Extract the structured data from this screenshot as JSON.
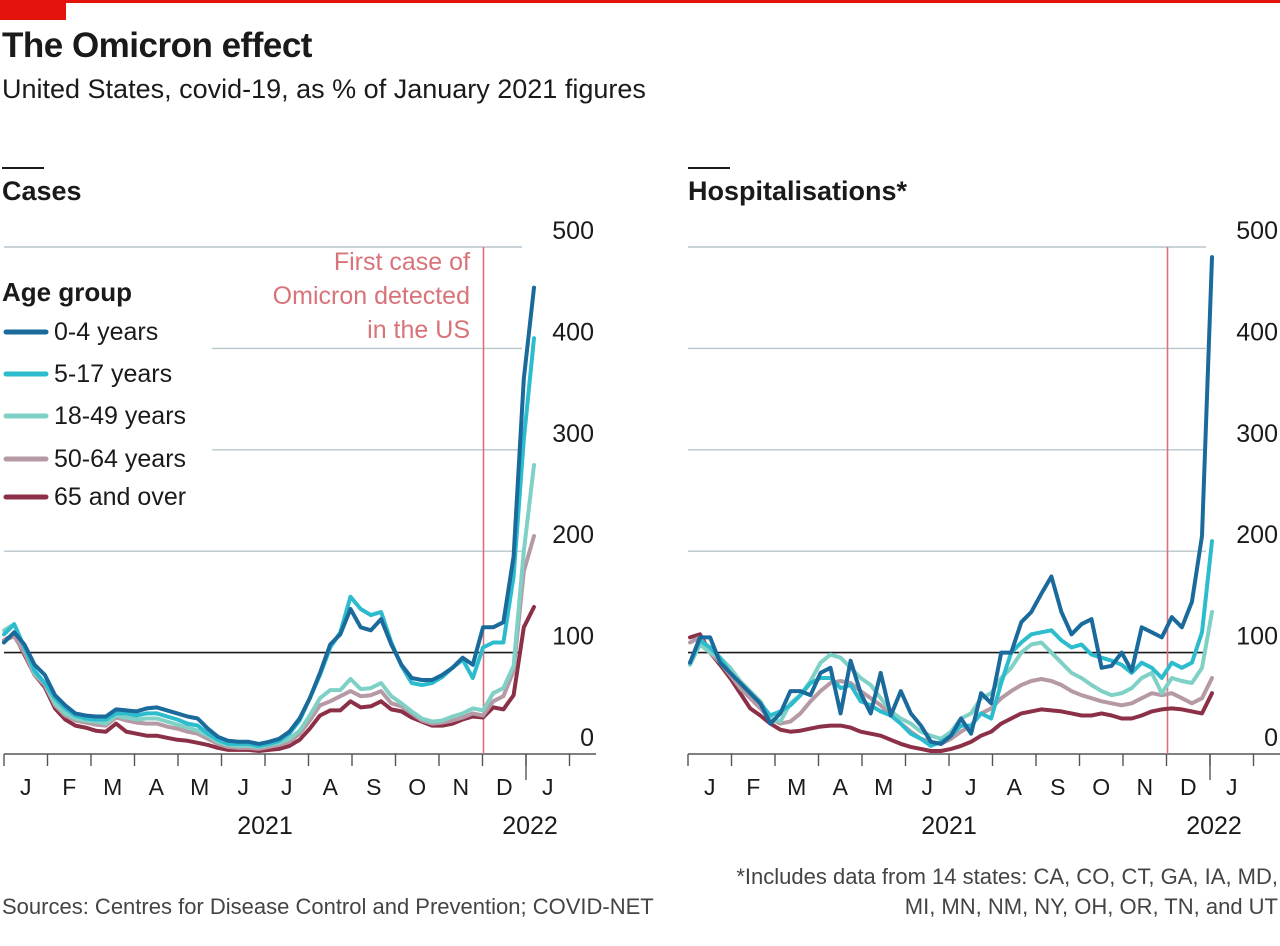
{
  "header": {
    "title": "The Omicron effect",
    "subtitle": "United States, covid-19, as % of January 2021 figures"
  },
  "footer": {
    "source": "Sources: Centres for Disease Control and Prevention; COVID-NET",
    "footnote_lines": [
      "*Includes data from 14 states: CA, CO, CT, GA, IA, MD,",
      "MI, MN, NM, NY, OH, OR, TN, and UT"
    ]
  },
  "colors": {
    "brand_red": "#e3120b",
    "grid": "#b9c6cc",
    "baseline": "#1a1a1a",
    "omicron_line": "#d9737a",
    "series": [
      "#1a6a9b",
      "#2cbcce",
      "#7fd1c6",
      "#b59aa5",
      "#8c3048"
    ]
  },
  "legend": {
    "title": "Age group",
    "items": [
      "0-4 years",
      "5-17 years",
      "18-49 years",
      "50-64 years",
      "65 and over"
    ]
  },
  "annotation": {
    "lines": [
      "First case of",
      "Omicron detected",
      "in the US"
    ]
  },
  "chart_data": [
    {
      "type": "line",
      "title": "Cases",
      "y_ticks": [
        0,
        100,
        200,
        300,
        400,
        500
      ],
      "ylim": [
        0,
        500
      ],
      "x_month_labels": [
        "J",
        "F",
        "M",
        "A",
        "M",
        "J",
        "J",
        "A",
        "S",
        "O",
        "N",
        "D",
        "J"
      ],
      "x_year_labels": [
        "2021",
        "2022"
      ],
      "x_start": "2021-01-01",
      "omicron_marker_week": 47,
      "series": [
        {
          "name": "0-4 years",
          "values": [
            110,
            120,
            108,
            88,
            78,
            58,
            48,
            40,
            38,
            37,
            37,
            44,
            43,
            42,
            45,
            46,
            43,
            40,
            37,
            35,
            25,
            17,
            13,
            12,
            12,
            10,
            12,
            15,
            22,
            35,
            55,
            80,
            108,
            118,
            143,
            125,
            122,
            133,
            108,
            88,
            75,
            73,
            73,
            78,
            85,
            95,
            88,
            125,
            125,
            130,
            195,
            370,
            460
          ]
        },
        {
          "name": "5-17 years",
          "values": [
            118,
            128,
            105,
            82,
            70,
            55,
            45,
            38,
            35,
            34,
            34,
            40,
            40,
            38,
            40,
            40,
            37,
            34,
            30,
            28,
            20,
            14,
            10,
            10,
            10,
            8,
            10,
            13,
            20,
            33,
            55,
            78,
            105,
            120,
            155,
            143,
            137,
            140,
            110,
            87,
            70,
            68,
            70,
            76,
            85,
            93,
            75,
            105,
            110,
            110,
            175,
            310,
            410
          ]
        },
        {
          "name": "18-49 years",
          "values": [
            122,
            128,
            105,
            80,
            70,
            50,
            40,
            35,
            33,
            32,
            30,
            38,
            36,
            34,
            35,
            35,
            32,
            29,
            26,
            23,
            18,
            12,
            9,
            8,
            8,
            7,
            9,
            11,
            15,
            23,
            38,
            55,
            63,
            63,
            74,
            64,
            65,
            70,
            57,
            50,
            42,
            35,
            32,
            33,
            37,
            40,
            45,
            43,
            60,
            65,
            87,
            200,
            285
          ]
        },
        {
          "name": "50-64 years",
          "values": [
            112,
            116,
            100,
            78,
            68,
            48,
            38,
            33,
            31,
            29,
            28,
            36,
            33,
            31,
            30,
            30,
            27,
            25,
            22,
            20,
            15,
            10,
            7,
            6,
            6,
            5,
            7,
            9,
            12,
            20,
            33,
            48,
            52,
            57,
            62,
            57,
            58,
            62,
            50,
            47,
            40,
            33,
            30,
            31,
            33,
            36,
            40,
            38,
            52,
            57,
            82,
            180,
            215
          ]
        },
        {
          "name": "65 and over",
          "values": [
            112,
            118,
            98,
            78,
            66,
            45,
            34,
            28,
            26,
            23,
            22,
            30,
            22,
            20,
            18,
            18,
            16,
            14,
            13,
            11,
            9,
            6,
            4,
            4,
            4,
            3,
            4,
            5,
            8,
            14,
            25,
            38,
            43,
            43,
            52,
            46,
            47,
            52,
            44,
            42,
            36,
            32,
            28,
            28,
            30,
            34,
            37,
            36,
            46,
            44,
            58,
            125,
            145
          ]
        }
      ]
    },
    {
      "type": "line",
      "title": "Hospitalisations*",
      "y_ticks": [
        0,
        100,
        200,
        300,
        400,
        500
      ],
      "ylim": [
        0,
        500
      ],
      "x_month_labels": [
        "J",
        "F",
        "M",
        "A",
        "M",
        "J",
        "J",
        "A",
        "S",
        "O",
        "N",
        "D",
        "J"
      ],
      "x_year_labels": [
        "2021",
        "2022"
      ],
      "x_start": "2021-01-01",
      "omicron_marker_week": 47,
      "series": [
        {
          "name": "0-4 years",
          "values": [
            90,
            115,
            115,
            90,
            80,
            70,
            60,
            50,
            30,
            40,
            62,
            62,
            58,
            80,
            85,
            40,
            92,
            60,
            40,
            80,
            38,
            62,
            40,
            28,
            12,
            10,
            18,
            35,
            20,
            60,
            50,
            100,
            100,
            130,
            140,
            158,
            175,
            140,
            118,
            128,
            133,
            85,
            87,
            100,
            82,
            125,
            120,
            115,
            135,
            125,
            150,
            215,
            490
          ]
        },
        {
          "name": "5-17 years",
          "values": [
            90,
            112,
            105,
            95,
            80,
            70,
            60,
            50,
            38,
            42,
            48,
            58,
            70,
            75,
            75,
            65,
            68,
            52,
            48,
            42,
            38,
            30,
            20,
            15,
            8,
            12,
            18,
            28,
            28,
            40,
            35,
            70,
            100,
            110,
            118,
            120,
            122,
            112,
            105,
            108,
            98,
            95,
            92,
            88,
            80,
            90,
            85,
            75,
            90,
            85,
            90,
            120,
            210
          ]
        },
        {
          "name": "18-49 years",
          "values": [
            88,
            108,
            100,
            95,
            85,
            72,
            62,
            52,
            35,
            32,
            50,
            58,
            72,
            90,
            98,
            95,
            85,
            75,
            68,
            55,
            42,
            35,
            30,
            22,
            18,
            15,
            22,
            35,
            40,
            55,
            60,
            75,
            85,
            100,
            108,
            110,
            100,
            90,
            80,
            75,
            68,
            62,
            58,
            60,
            65,
            75,
            80,
            60,
            75,
            72,
            70,
            85,
            140
          ]
        },
        {
          "name": "50-64 years",
          "values": [
            110,
            115,
            100,
            90,
            78,
            65,
            55,
            45,
            35,
            30,
            32,
            40,
            52,
            62,
            70,
            72,
            70,
            62,
            55,
            48,
            38,
            30,
            22,
            15,
            12,
            10,
            15,
            22,
            28,
            40,
            45,
            55,
            62,
            68,
            72,
            74,
            72,
            68,
            62,
            58,
            55,
            52,
            50,
            48,
            50,
            55,
            60,
            58,
            60,
            55,
            50,
            55,
            75
          ]
        },
        {
          "name": "65 and over",
          "values": [
            115,
            118,
            100,
            88,
            75,
            60,
            45,
            38,
            30,
            24,
            22,
            23,
            25,
            27,
            28,
            28,
            26,
            22,
            20,
            18,
            14,
            10,
            7,
            5,
            3,
            3,
            5,
            8,
            12,
            18,
            22,
            30,
            35,
            40,
            42,
            44,
            43,
            42,
            40,
            38,
            38,
            40,
            38,
            35,
            35,
            38,
            42,
            44,
            45,
            44,
            42,
            40,
            60
          ]
        }
      ]
    }
  ]
}
